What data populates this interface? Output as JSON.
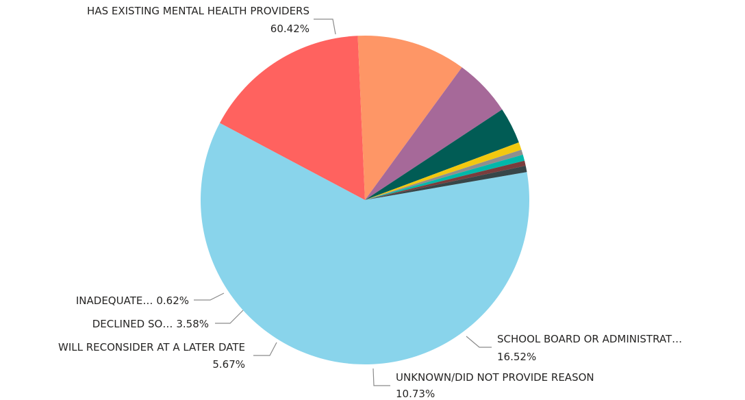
{
  "chart_data": {
    "type": "pie",
    "slices": [
      {
        "key": "existing",
        "label": "HAS EXISTING MENTAL HEALTH PROVIDERS",
        "value_label": "60.42%",
        "value": 60.42,
        "color": "#89D4EB"
      },
      {
        "key": "board",
        "label": "SCHOOL BOARD OR ADMINISTRAT…",
        "value_label": "16.52%",
        "value": 16.52,
        "color": "#FF625F"
      },
      {
        "key": "unknown",
        "label": "UNKNOWN/DID NOT PROVIDE REASON",
        "value_label": "10.73%",
        "value": 10.73,
        "color": "#FE9666"
      },
      {
        "key": "reconsider",
        "label": "WILL RECONSIDER AT A LATER DATE",
        "value_label": "5.67%",
        "value": 5.67,
        "color": "#A66999"
      },
      {
        "key": "declined",
        "label": "DECLINED SO…",
        "value_label": "3.58%",
        "value": 3.58,
        "color": "#015C55"
      },
      {
        "key": "small1",
        "label": "",
        "value_label": "",
        "value": 0.75,
        "color": "#F2C80F"
      },
      {
        "key": "small2",
        "label": "",
        "value_label": "",
        "value": 0.5,
        "color": "#8F8F8F"
      },
      {
        "key": "small3",
        "label": "",
        "value_label": "",
        "value": 0.6,
        "color": "#01B8AA"
      },
      {
        "key": "small4",
        "label": "",
        "value_label": "",
        "value": 0.5,
        "color": "#7A3D3D"
      },
      {
        "key": "inadequate",
        "label": "INADEQUATE…",
        "value_label": "0.62%",
        "value": 0.62,
        "color": "#374649"
      }
    ]
  }
}
